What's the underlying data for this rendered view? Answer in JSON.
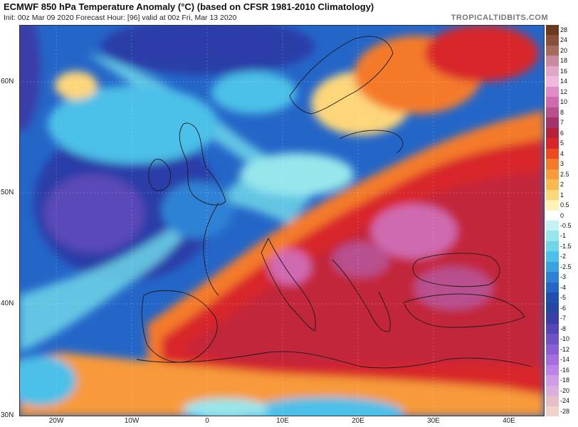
{
  "header": {
    "title": "ECMWF 850 hPa Temperature Anomaly (°C) (based on CFSR 1981-2010 Climatology)",
    "subtitle": "Init: 00z Mar 09 2020   Forecast Hour: [96]   valid at 00z Fri, Mar 13 2020",
    "brand": "TROPICALTIDBITS.COM"
  },
  "axes": {
    "lat_labels": [
      "60N",
      "50N",
      "40N",
      "30N"
    ],
    "lon_labels": [
      "20W",
      "10W",
      "0",
      "10E",
      "20E",
      "30E",
      "40E"
    ]
  },
  "legend": {
    "entries": [
      {
        "label": "28",
        "color": "#6b3a1e"
      },
      {
        "label": "24",
        "color": "#8a4f3a"
      },
      {
        "label": "20",
        "color": "#a86a5c"
      },
      {
        "label": "18",
        "color": "#c98aa0"
      },
      {
        "label": "16",
        "color": "#e3a6c8"
      },
      {
        "label": "14",
        "color": "#f0b8de"
      },
      {
        "label": "12",
        "color": "#e58ac9"
      },
      {
        "label": "10",
        "color": "#d06ab0"
      },
      {
        "label": "8",
        "color": "#b84f8e"
      },
      {
        "label": "7",
        "color": "#a3336a"
      },
      {
        "label": "6",
        "color": "#b8203a"
      },
      {
        "label": "5",
        "color": "#d8262a"
      },
      {
        "label": "4",
        "color": "#ee4a22"
      },
      {
        "label": "3",
        "color": "#f47a2a"
      },
      {
        "label": "2.5",
        "color": "#f89a3a"
      },
      {
        "label": "2",
        "color": "#fbb84e"
      },
      {
        "label": "1",
        "color": "#fdd67a"
      },
      {
        "label": "0.5",
        "color": "#fff2b4"
      },
      {
        "label": "0",
        "color": "#ffffff"
      },
      {
        "label": "-0.5",
        "color": "#c6f2f4"
      },
      {
        "label": "-1",
        "color": "#96e6ec"
      },
      {
        "label": "-1.5",
        "color": "#6ed6e8"
      },
      {
        "label": "-2",
        "color": "#4cc0e8"
      },
      {
        "label": "-2.5",
        "color": "#3aa2e2"
      },
      {
        "label": "-3",
        "color": "#2d82d6"
      },
      {
        "label": "-4",
        "color": "#2466c8"
      },
      {
        "label": "-5",
        "color": "#1f50b0"
      },
      {
        "label": "-6",
        "color": "#2446a0"
      },
      {
        "label": "-7",
        "color": "#3a3ea8"
      },
      {
        "label": "-8",
        "color": "#5446b8"
      },
      {
        "label": "-10",
        "color": "#6e52c8"
      },
      {
        "label": "-12",
        "color": "#8a5ed4"
      },
      {
        "label": "-14",
        "color": "#a46ede"
      },
      {
        "label": "-16",
        "color": "#bc82e6"
      },
      {
        "label": "-18",
        "color": "#d09ae6"
      },
      {
        "label": "-20",
        "color": "#dcaee0"
      },
      {
        "label": "-24",
        "color": "#e6bec8"
      },
      {
        "label": "-28",
        "color": "#f2d2c8"
      }
    ]
  },
  "colors": {
    "deep_cold": "#2a3ea8",
    "cold": "#2466c8",
    "cool": "#4cc0e8",
    "neutral": "#ffffff",
    "warm": "#f47a2a",
    "hot": "#c2253a",
    "very_hot": "#a3336a",
    "border_line": "#1a1a1a"
  }
}
